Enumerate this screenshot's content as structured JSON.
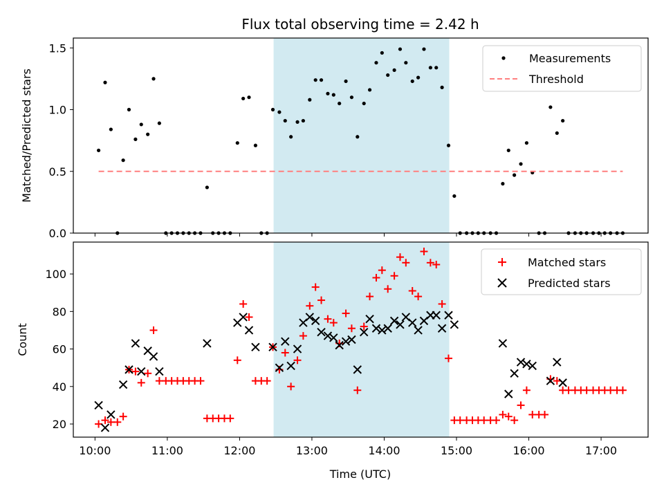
{
  "chart_data": {
    "title": "Flux total observing time = 2.42 h",
    "xlabel": "Time (UTC)",
    "x_unit": "hours UTC",
    "xlim": [
      9.7,
      17.65
    ],
    "xticks": [
      10,
      11,
      12,
      13,
      14,
      15,
      16,
      17
    ],
    "xtick_labels": [
      "10:00",
      "11:00",
      "12:00",
      "13:00",
      "14:00",
      "15:00",
      "16:00",
      "17:00"
    ],
    "highlight_span": {
      "x_start": 12.47,
      "x_end": 14.9,
      "color": "#add8e6"
    },
    "panels": [
      {
        "type": "scatter",
        "ylabel": "Matched/Predicted stars",
        "ylim": [
          0,
          1.58
        ],
        "yticks": [
          0.0,
          0.5,
          1.0,
          1.5
        ],
        "ytick_labels": [
          "0.0",
          "0.5",
          "1.0",
          "1.5"
        ],
        "legend": {
          "location": "upper right",
          "entries": [
            "Measurements",
            "Threshold"
          ]
        },
        "series": [
          {
            "name": "Measurements",
            "marker": "dot",
            "color": "#000000",
            "points": [
              [
                10.05,
                0.67
              ],
              [
                10.14,
                1.22
              ],
              [
                10.22,
                0.84
              ],
              [
                10.31,
                0.0
              ],
              [
                10.39,
                0.59
              ],
              [
                10.47,
                1.0
              ],
              [
                10.56,
                0.76
              ],
              [
                10.64,
                0.88
              ],
              [
                10.73,
                0.8
              ],
              [
                10.81,
                1.25
              ],
              [
                10.89,
                0.89
              ],
              [
                10.98,
                0.0
              ],
              [
                11.06,
                0.0
              ],
              [
                11.14,
                0.0
              ],
              [
                11.22,
                0.0
              ],
              [
                11.3,
                0.0
              ],
              [
                11.38,
                0.0
              ],
              [
                11.46,
                0.0
              ],
              [
                11.55,
                0.37
              ],
              [
                11.63,
                0.0
              ],
              [
                11.71,
                0.0
              ],
              [
                11.79,
                0.0
              ],
              [
                11.87,
                0.0
              ],
              [
                11.97,
                0.73
              ],
              [
                12.05,
                1.09
              ],
              [
                12.13,
                1.1
              ],
              [
                12.22,
                0.71
              ],
              [
                12.3,
                0.0
              ],
              [
                12.38,
                0.0
              ],
              [
                12.46,
                1.0
              ],
              [
                12.55,
                0.98
              ],
              [
                12.63,
                0.91
              ],
              [
                12.71,
                0.78
              ],
              [
                12.8,
                0.9
              ],
              [
                12.88,
                0.91
              ],
              [
                12.97,
                1.08
              ],
              [
                13.05,
                1.24
              ],
              [
                13.13,
                1.24
              ],
              [
                13.22,
                1.13
              ],
              [
                13.3,
                1.12
              ],
              [
                13.38,
                1.05
              ],
              [
                13.47,
                1.23
              ],
              [
                13.55,
                1.1
              ],
              [
                13.63,
                0.78
              ],
              [
                13.72,
                1.05
              ],
              [
                13.8,
                1.16
              ],
              [
                13.89,
                1.38
              ],
              [
                13.97,
                1.46
              ],
              [
                14.05,
                1.28
              ],
              [
                14.14,
                1.32
              ],
              [
                14.22,
                1.49
              ],
              [
                14.3,
                1.38
              ],
              [
                14.39,
                1.23
              ],
              [
                14.47,
                1.26
              ],
              [
                14.55,
                1.49
              ],
              [
                14.64,
                1.34
              ],
              [
                14.72,
                1.34
              ],
              [
                14.8,
                1.18
              ],
              [
                14.89,
                0.71
              ],
              [
                14.97,
                0.3
              ],
              [
                15.05,
                0.0
              ],
              [
                15.14,
                0.0
              ],
              [
                15.22,
                0.0
              ],
              [
                15.3,
                0.0
              ],
              [
                15.38,
                0.0
              ],
              [
                15.47,
                0.0
              ],
              [
                15.55,
                0.0
              ],
              [
                15.64,
                0.4
              ],
              [
                15.72,
                0.67
              ],
              [
                15.8,
                0.47
              ],
              [
                15.89,
                0.56
              ],
              [
                15.97,
                0.73
              ],
              [
                16.05,
                0.49
              ],
              [
                16.14,
                0.0
              ],
              [
                16.22,
                0.0
              ],
              [
                16.3,
                1.02
              ],
              [
                16.39,
                0.81
              ],
              [
                16.47,
                0.91
              ],
              [
                16.55,
                0.0
              ],
              [
                16.64,
                0.0
              ],
              [
                16.72,
                0.0
              ],
              [
                16.8,
                0.0
              ],
              [
                16.89,
                0.0
              ],
              [
                16.97,
                0.0
              ],
              [
                17.05,
                0.0
              ],
              [
                17.13,
                0.0
              ],
              [
                17.22,
                0.0
              ],
              [
                17.3,
                0.0
              ]
            ]
          },
          {
            "name": "Threshold",
            "marker": "dashed-line",
            "color": "#ff7f7f",
            "x": [
              10.05,
              17.3
            ],
            "y": [
              0.5,
              0.5
            ]
          }
        ]
      },
      {
        "type": "scatter",
        "ylabel": "Count",
        "ylim": [
          13,
          117
        ],
        "yticks": [
          20,
          40,
          60,
          80,
          100
        ],
        "ytick_labels": [
          "20",
          "40",
          "60",
          "80",
          "100"
        ],
        "legend": {
          "location": "upper right",
          "entries": [
            "Matched stars",
            "Predicted stars"
          ]
        },
        "series": [
          {
            "name": "Matched stars",
            "marker": "plus",
            "color": "#ff0000",
            "points": [
              [
                10.05,
                20
              ],
              [
                10.14,
                22
              ],
              [
                10.22,
                21
              ],
              [
                10.31,
                21
              ],
              [
                10.39,
                24
              ],
              [
                10.47,
                49
              ],
              [
                10.56,
                48
              ],
              [
                10.64,
                42
              ],
              [
                10.73,
                47
              ],
              [
                10.81,
                70
              ],
              [
                10.89,
                43
              ],
              [
                10.98,
                43
              ],
              [
                11.06,
                43
              ],
              [
                11.14,
                43
              ],
              [
                11.22,
                43
              ],
              [
                11.3,
                43
              ],
              [
                11.38,
                43
              ],
              [
                11.46,
                43
              ],
              [
                11.55,
                23
              ],
              [
                11.63,
                23
              ],
              [
                11.71,
                23
              ],
              [
                11.79,
                23
              ],
              [
                11.87,
                23
              ],
              [
                11.97,
                54
              ],
              [
                12.05,
                84
              ],
              [
                12.13,
                77
              ],
              [
                12.22,
                43
              ],
              [
                12.3,
                43
              ],
              [
                12.38,
                43
              ],
              [
                12.46,
                61
              ],
              [
                12.55,
                49
              ],
              [
                12.63,
                58
              ],
              [
                12.71,
                40
              ],
              [
                12.8,
                54
              ],
              [
                12.88,
                67
              ],
              [
                12.97,
                83
              ],
              [
                13.05,
                93
              ],
              [
                13.13,
                86
              ],
              [
                13.22,
                76
              ],
              [
                13.3,
                74
              ],
              [
                13.38,
                63
              ],
              [
                13.47,
                79
              ],
              [
                13.55,
                71
              ],
              [
                13.63,
                38
              ],
              [
                13.72,
                72
              ],
              [
                13.8,
                88
              ],
              [
                13.89,
                98
              ],
              [
                13.97,
                102
              ],
              [
                14.05,
                92
              ],
              [
                14.14,
                99
              ],
              [
                14.22,
                109
              ],
              [
                14.3,
                106
              ],
              [
                14.39,
                91
              ],
              [
                14.47,
                88
              ],
              [
                14.55,
                112
              ],
              [
                14.64,
                106
              ],
              [
                14.72,
                105
              ],
              [
                14.8,
                84
              ],
              [
                14.89,
                55
              ],
              [
                14.97,
                22
              ],
              [
                15.05,
                22
              ],
              [
                15.14,
                22
              ],
              [
                15.22,
                22
              ],
              [
                15.3,
                22
              ],
              [
                15.38,
                22
              ],
              [
                15.47,
                22
              ],
              [
                15.55,
                22
              ],
              [
                15.64,
                25
              ],
              [
                15.72,
                24
              ],
              [
                15.8,
                22
              ],
              [
                15.89,
                30
              ],
              [
                15.97,
                38
              ],
              [
                16.05,
                25
              ],
              [
                16.14,
                25
              ],
              [
                16.22,
                25
              ],
              [
                16.3,
                44
              ],
              [
                16.39,
                43
              ],
              [
                16.47,
                38
              ],
              [
                16.55,
                38
              ],
              [
                16.64,
                38
              ],
              [
                16.72,
                38
              ],
              [
                16.8,
                38
              ],
              [
                16.89,
                38
              ],
              [
                16.97,
                38
              ],
              [
                17.05,
                38
              ],
              [
                17.13,
                38
              ],
              [
                17.22,
                38
              ],
              [
                17.3,
                38
              ]
            ]
          },
          {
            "name": "Predicted stars",
            "marker": "x",
            "color": "#000000",
            "points": [
              [
                10.05,
                30
              ],
              [
                10.14,
                18
              ],
              [
                10.22,
                25
              ],
              [
                10.39,
                41
              ],
              [
                10.47,
                49
              ],
              [
                10.56,
                63
              ],
              [
                10.64,
                48
              ],
              [
                10.73,
                59
              ],
              [
                10.81,
                56
              ],
              [
                10.89,
                48
              ],
              [
                11.55,
                63
              ],
              [
                11.97,
                74
              ],
              [
                12.05,
                77
              ],
              [
                12.13,
                70
              ],
              [
                12.22,
                61
              ],
              [
                12.46,
                61
              ],
              [
                12.55,
                50
              ],
              [
                12.63,
                64
              ],
              [
                12.71,
                51
              ],
              [
                12.8,
                60
              ],
              [
                12.88,
                74
              ],
              [
                12.97,
                77
              ],
              [
                13.05,
                75
              ],
              [
                13.13,
                69
              ],
              [
                13.22,
                67
              ],
              [
                13.3,
                66
              ],
              [
                13.38,
                62
              ],
              [
                13.47,
                64
              ],
              [
                13.55,
                65
              ],
              [
                13.63,
                49
              ],
              [
                13.72,
                69
              ],
              [
                13.8,
                76
              ],
              [
                13.89,
                71
              ],
              [
                13.97,
                70
              ],
              [
                14.05,
                71
              ],
              [
                14.14,
                75
              ],
              [
                14.22,
                73
              ],
              [
                14.3,
                77
              ],
              [
                14.39,
                74
              ],
              [
                14.47,
                70
              ],
              [
                14.55,
                75
              ],
              [
                14.64,
                78
              ],
              [
                14.72,
                78
              ],
              [
                14.8,
                71
              ],
              [
                14.89,
                78
              ],
              [
                14.97,
                73
              ],
              [
                15.64,
                63
              ],
              [
                15.72,
                36
              ],
              [
                15.8,
                47
              ],
              [
                15.89,
                53
              ],
              [
                15.97,
                52
              ],
              [
                16.05,
                51
              ],
              [
                16.3,
                43
              ],
              [
                16.39,
                53
              ],
              [
                16.47,
                42
              ]
            ]
          }
        ]
      }
    ]
  }
}
